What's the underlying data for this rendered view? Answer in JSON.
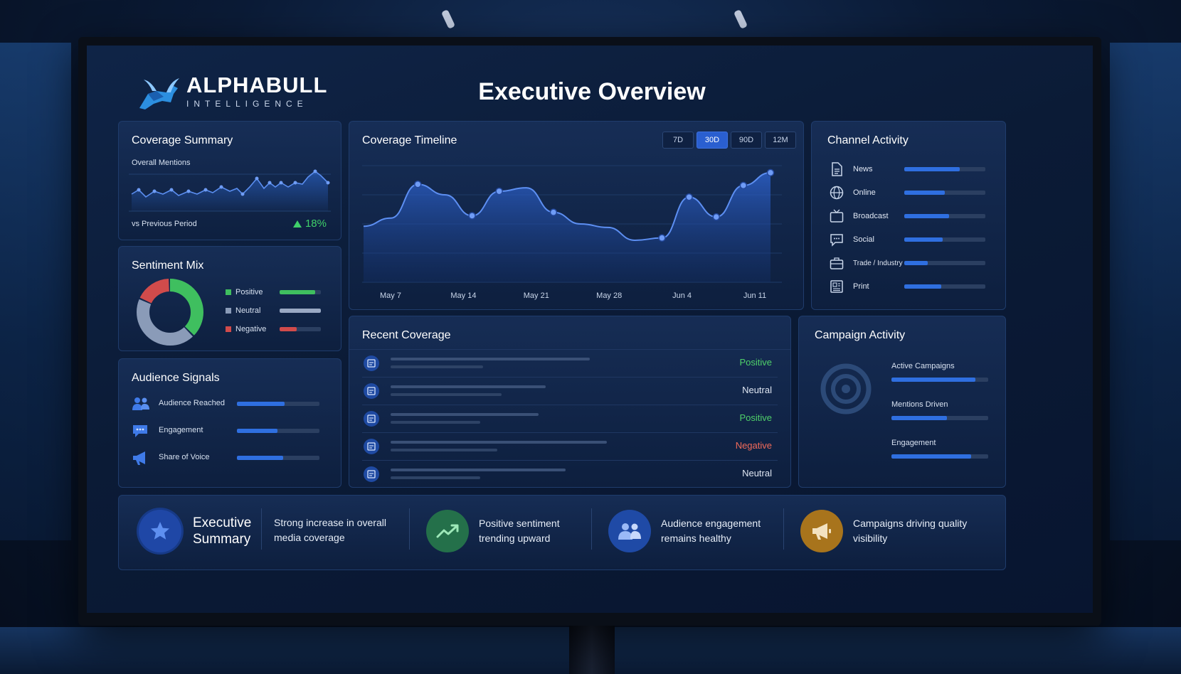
{
  "brand": {
    "name": "ALPHABULL",
    "tagline": "INTELLIGENCE"
  },
  "page_title": "Executive Overview",
  "coverage_summary": {
    "title": "Coverage Summary",
    "metric_label": "Overall Mentions",
    "comparison_label": "vs Previous Period",
    "change": "18%",
    "trend_color": "#3fd06a"
  },
  "sentiment_mix": {
    "title": "Sentiment Mix",
    "items": [
      {
        "label": "Positive",
        "share": 0.38,
        "color": "#3fbf5f"
      },
      {
        "label": "Neutral",
        "share": 0.44,
        "color": "#8a9bb8"
      },
      {
        "label": "Negative",
        "share": 0.18,
        "color": "#d14b4b"
      }
    ]
  },
  "audience_signals": {
    "title": "Audience Signals",
    "items": [
      {
        "label": "Audience Reached",
        "level": 0.58,
        "icon": "people-icon"
      },
      {
        "label": "Engagement",
        "level": 0.49,
        "icon": "chat-icon"
      },
      {
        "label": "Share of Voice",
        "level": 0.56,
        "icon": "megaphone-icon"
      }
    ]
  },
  "coverage_timeline": {
    "title": "Coverage Timeline",
    "ranges": [
      "7D",
      "30D",
      "90D",
      "12M"
    ],
    "active_range": "30D"
  },
  "chart_data": {
    "type": "area",
    "x_ticks": [
      "May 7",
      "May 14",
      "May 21",
      "May 28",
      "Jun 4",
      "Jun 11"
    ],
    "ylim": [
      0,
      100
    ],
    "grid": true,
    "series": [
      {
        "values": [
          48,
          55,
          84,
          75,
          57,
          78,
          81,
          60,
          50,
          47,
          36,
          38,
          73,
          56,
          83,
          94
        ]
      }
    ]
  },
  "channel_activity": {
    "title": "Channel Activity",
    "items": [
      {
        "label": "News",
        "level": 0.68,
        "icon": "document-icon"
      },
      {
        "label": "Online",
        "level": 0.5,
        "icon": "globe-icon"
      },
      {
        "label": "Broadcast",
        "level": 0.55,
        "icon": "tv-icon"
      },
      {
        "label": "Social",
        "level": 0.47,
        "icon": "comment-icon"
      },
      {
        "label": "Trade / Industry",
        "level": 0.29,
        "icon": "briefcase-icon"
      },
      {
        "label": "Print",
        "level": 0.46,
        "icon": "newspaper-icon"
      }
    ]
  },
  "recent_coverage": {
    "title": "Recent Coverage",
    "items": [
      {
        "status": "Positive",
        "color": "#4fd06a"
      },
      {
        "status": "Neutral",
        "color": "#dfe6f2"
      },
      {
        "status": "Positive",
        "color": "#4fd06a"
      },
      {
        "status": "Negative",
        "color": "#f26a5a"
      },
      {
        "status": "Neutral",
        "color": "#dfe6f2"
      }
    ]
  },
  "campaign_activity": {
    "title": "Campaign Activity",
    "items": [
      {
        "label": "Active Campaigns",
        "level": 0.87
      },
      {
        "label": "Mentions Driven",
        "level": 0.57
      },
      {
        "label": "Engagement",
        "level": 0.82
      }
    ]
  },
  "executive_summary": {
    "title_line1": "Executive",
    "title_line2": "Summary",
    "items": [
      {
        "line1": "Strong increase in overall",
        "line2": "media coverage"
      },
      {
        "line1": "Positive sentiment",
        "line2": "trending upward",
        "color": "#2f8f5a"
      },
      {
        "line1": "Audience engagement",
        "line2": "remains healthy",
        "color": "#1f4fb0"
      },
      {
        "line1": "Campaigns driving quality",
        "line2": "visibility",
        "color": "#b07a1f"
      }
    ]
  }
}
